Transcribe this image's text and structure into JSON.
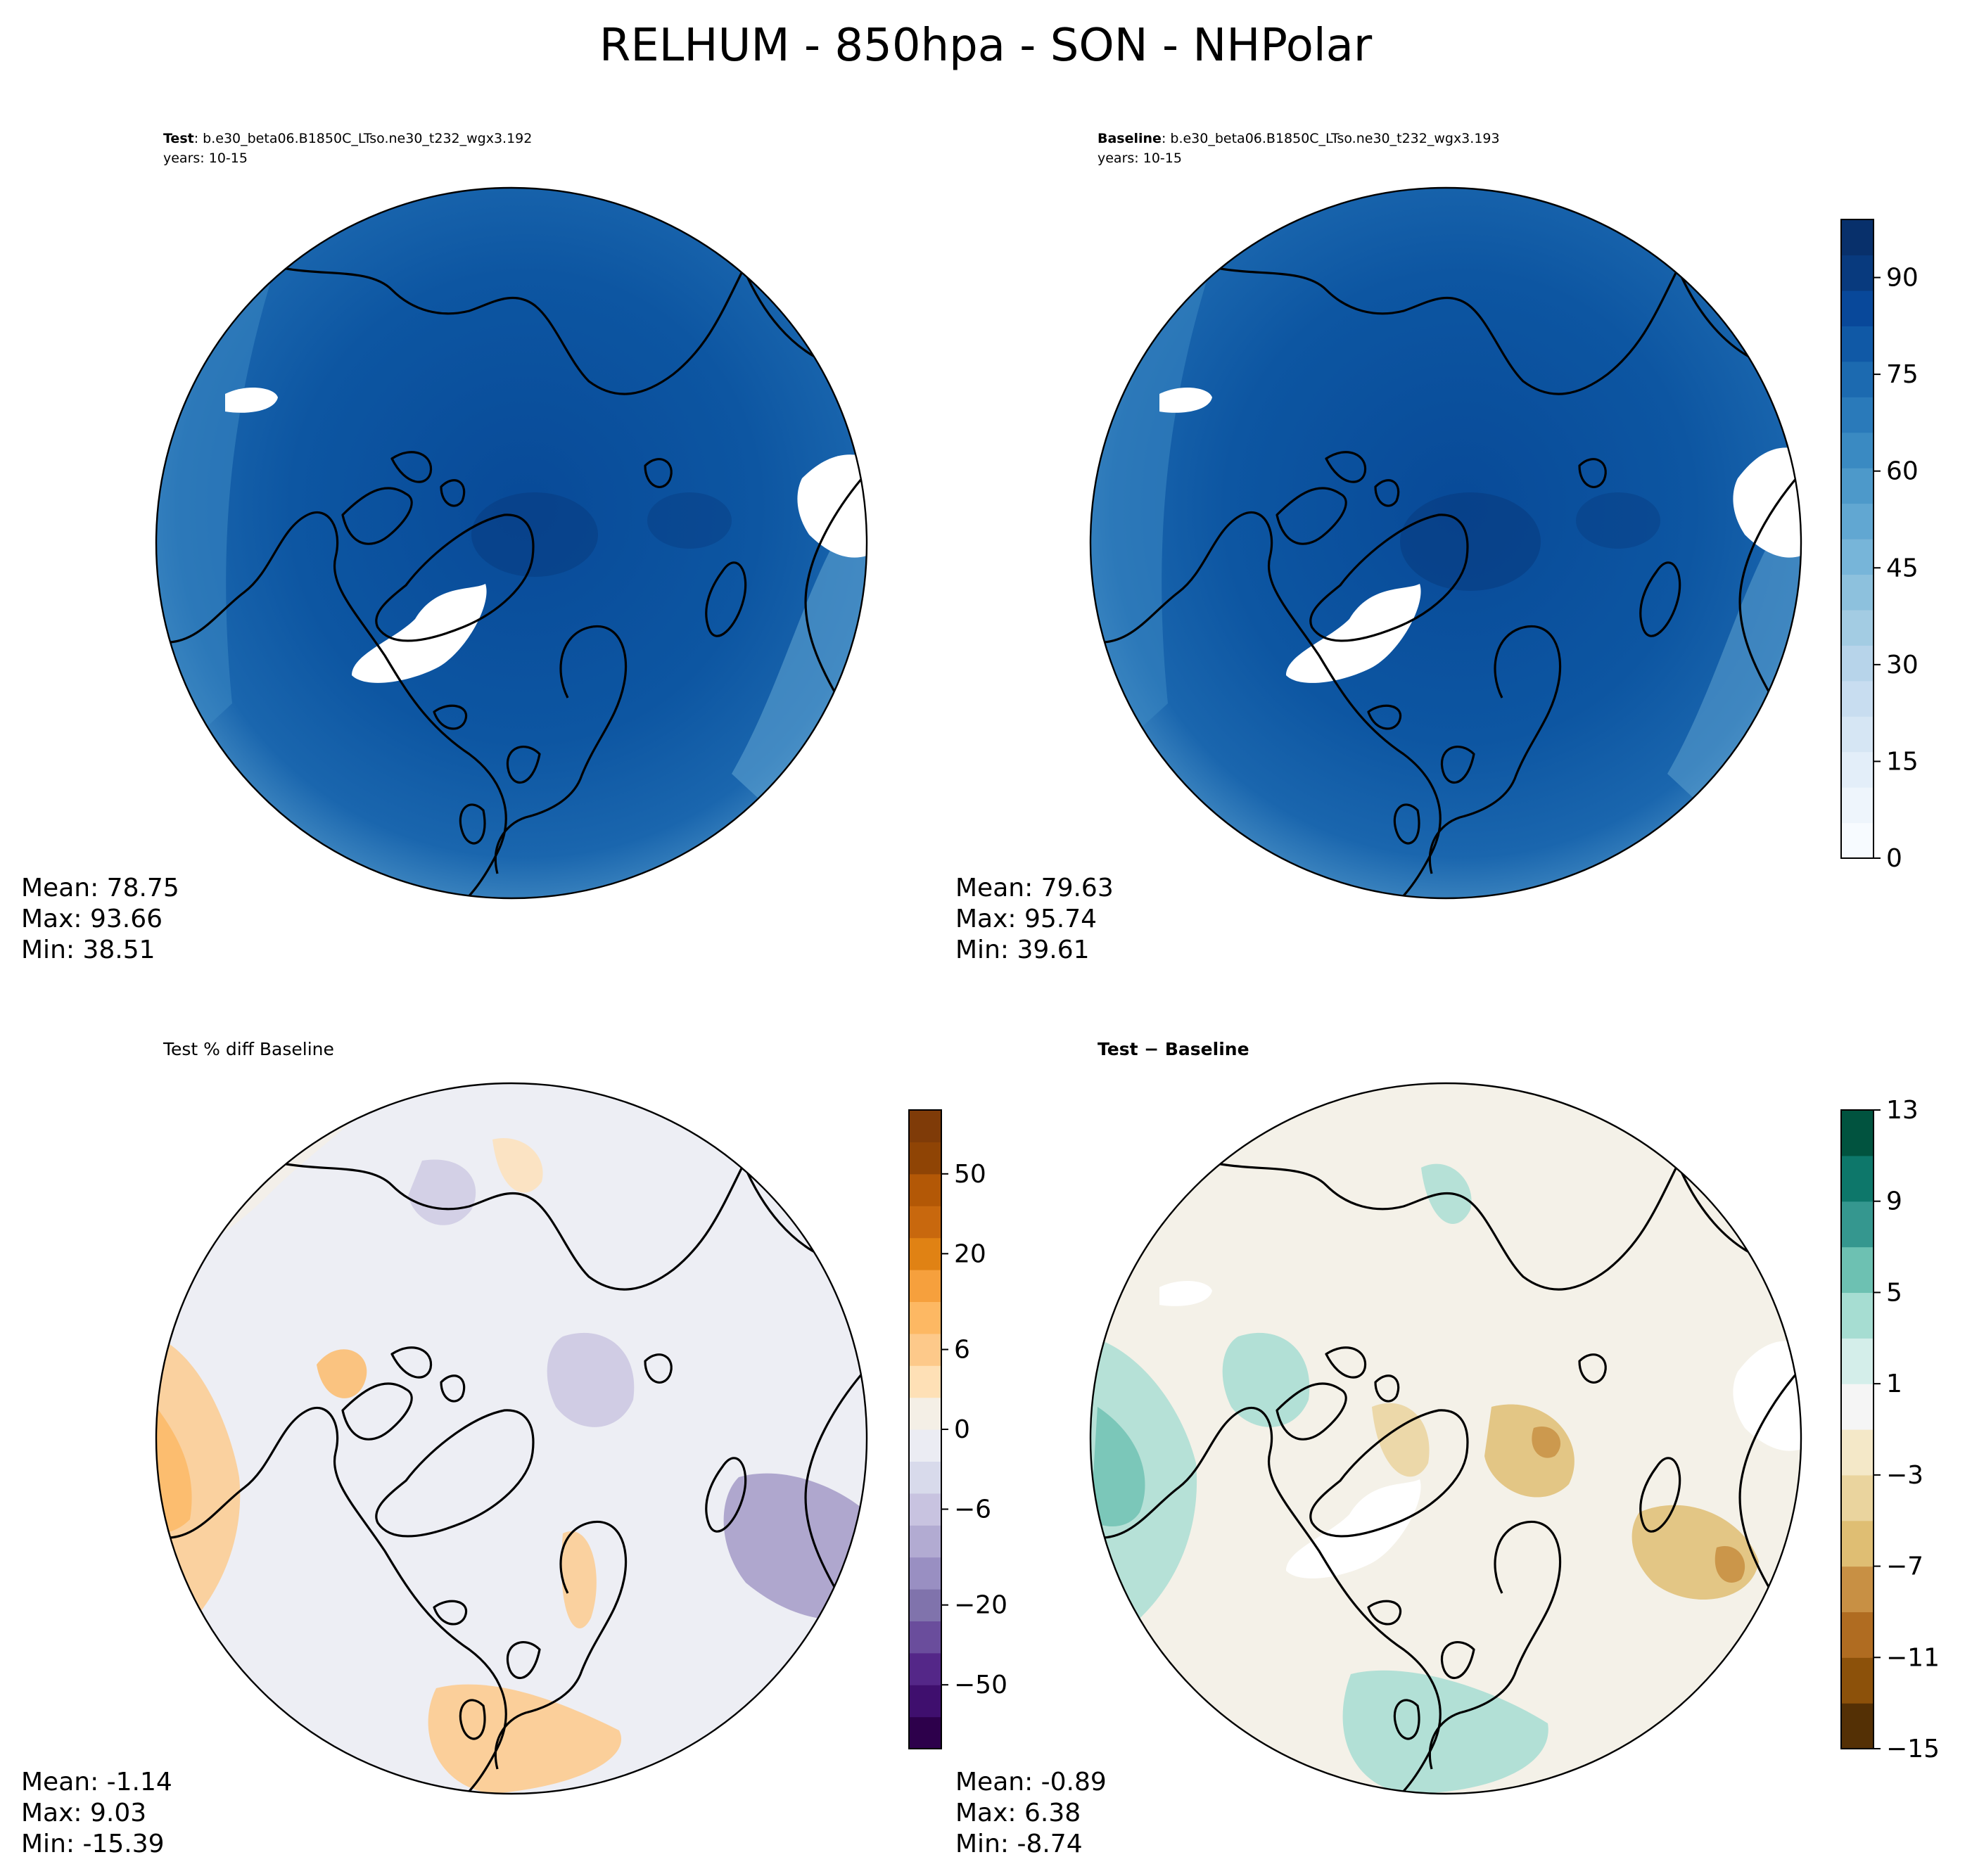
{
  "title": "RELHUM - 850hpa - SON - NHPolar",
  "panels": {
    "test": {
      "label_bold": "Test",
      "label_rest": ": b.e30_beta06.B1850C_LTso.ne30_t232_wgx3.192",
      "years": "years: 10-15",
      "mean": "Mean: 78.75",
      "max": "Max: 93.66",
      "min": "Min: 38.51"
    },
    "baseline": {
      "label_bold": "Baseline",
      "label_rest": ": b.e30_beta06.B1850C_LTso.ne30_t232_wgx3.193",
      "years": "years: 10-15",
      "mean": "Mean: 79.63",
      "max": "Max: 95.74",
      "min": "Min: 39.61"
    },
    "pctdiff": {
      "label": "Test % diff Baseline",
      "mean": "Mean: -1.14",
      "max": "Max:  9.03",
      "min": "Min: -15.39"
    },
    "diff": {
      "label": "Test − Baseline",
      "mean": "Mean: -0.89",
      "max": "Max:  6.38",
      "min": "Min: -8.74"
    }
  },
  "colorbars": {
    "relhum": {
      "ticks": [
        "0",
        "15",
        "30",
        "45",
        "60",
        "75",
        "90"
      ],
      "colors": [
        "#f7fbff",
        "#eef5fc",
        "#e3eef9",
        "#d6e6f4",
        "#c8ddf0",
        "#b7d4ea",
        "#a3cce3",
        "#8dc1dd",
        "#77b5d9",
        "#61a7d2",
        "#4d99ca",
        "#3a8ac2",
        "#2a7aba",
        "#1c6ab0",
        "#1059a6",
        "#08489a",
        "#083a7e",
        "#08306b"
      ]
    },
    "pctdiff": {
      "ticks": [
        "−50",
        "−20",
        "−6",
        "0",
        "6",
        "20",
        "50"
      ],
      "colors": [
        "#2d004b",
        "#3f0f6e",
        "#542788",
        "#6a4d9c",
        "#8073ac",
        "#998fc2",
        "#b2abd2",
        "#c8c3e0",
        "#d8daeb",
        "#ebecf3",
        "#f4efe6",
        "#fee0b6",
        "#fdc98a",
        "#fdb863",
        "#f6a03d",
        "#e08214",
        "#c8680e",
        "#b35806",
        "#8f4405",
        "#7f3b08"
      ]
    },
    "diff": {
      "ticks": [
        "−15",
        "−11",
        "−7",
        "−3",
        "1",
        "5",
        "9",
        "13"
      ],
      "colors": [
        "#543005",
        "#8c510a",
        "#b06c21",
        "#c89044",
        "#dfbe73",
        "#ead49e",
        "#f4e8c8",
        "#f5f5f5",
        "#d4eeea",
        "#a6ddd2",
        "#6dc1b2",
        "#35978f",
        "#0d776a",
        "#01533f"
      ]
    }
  },
  "colors": {
    "relhum_field": "#1158a4",
    "relhum_dark": "#084a98",
    "relhum_edge": "#5ea2d0",
    "pctdiff_base": "#edeef4",
    "diff_base": "#f4f1e8",
    "coast": "#000000"
  }
}
